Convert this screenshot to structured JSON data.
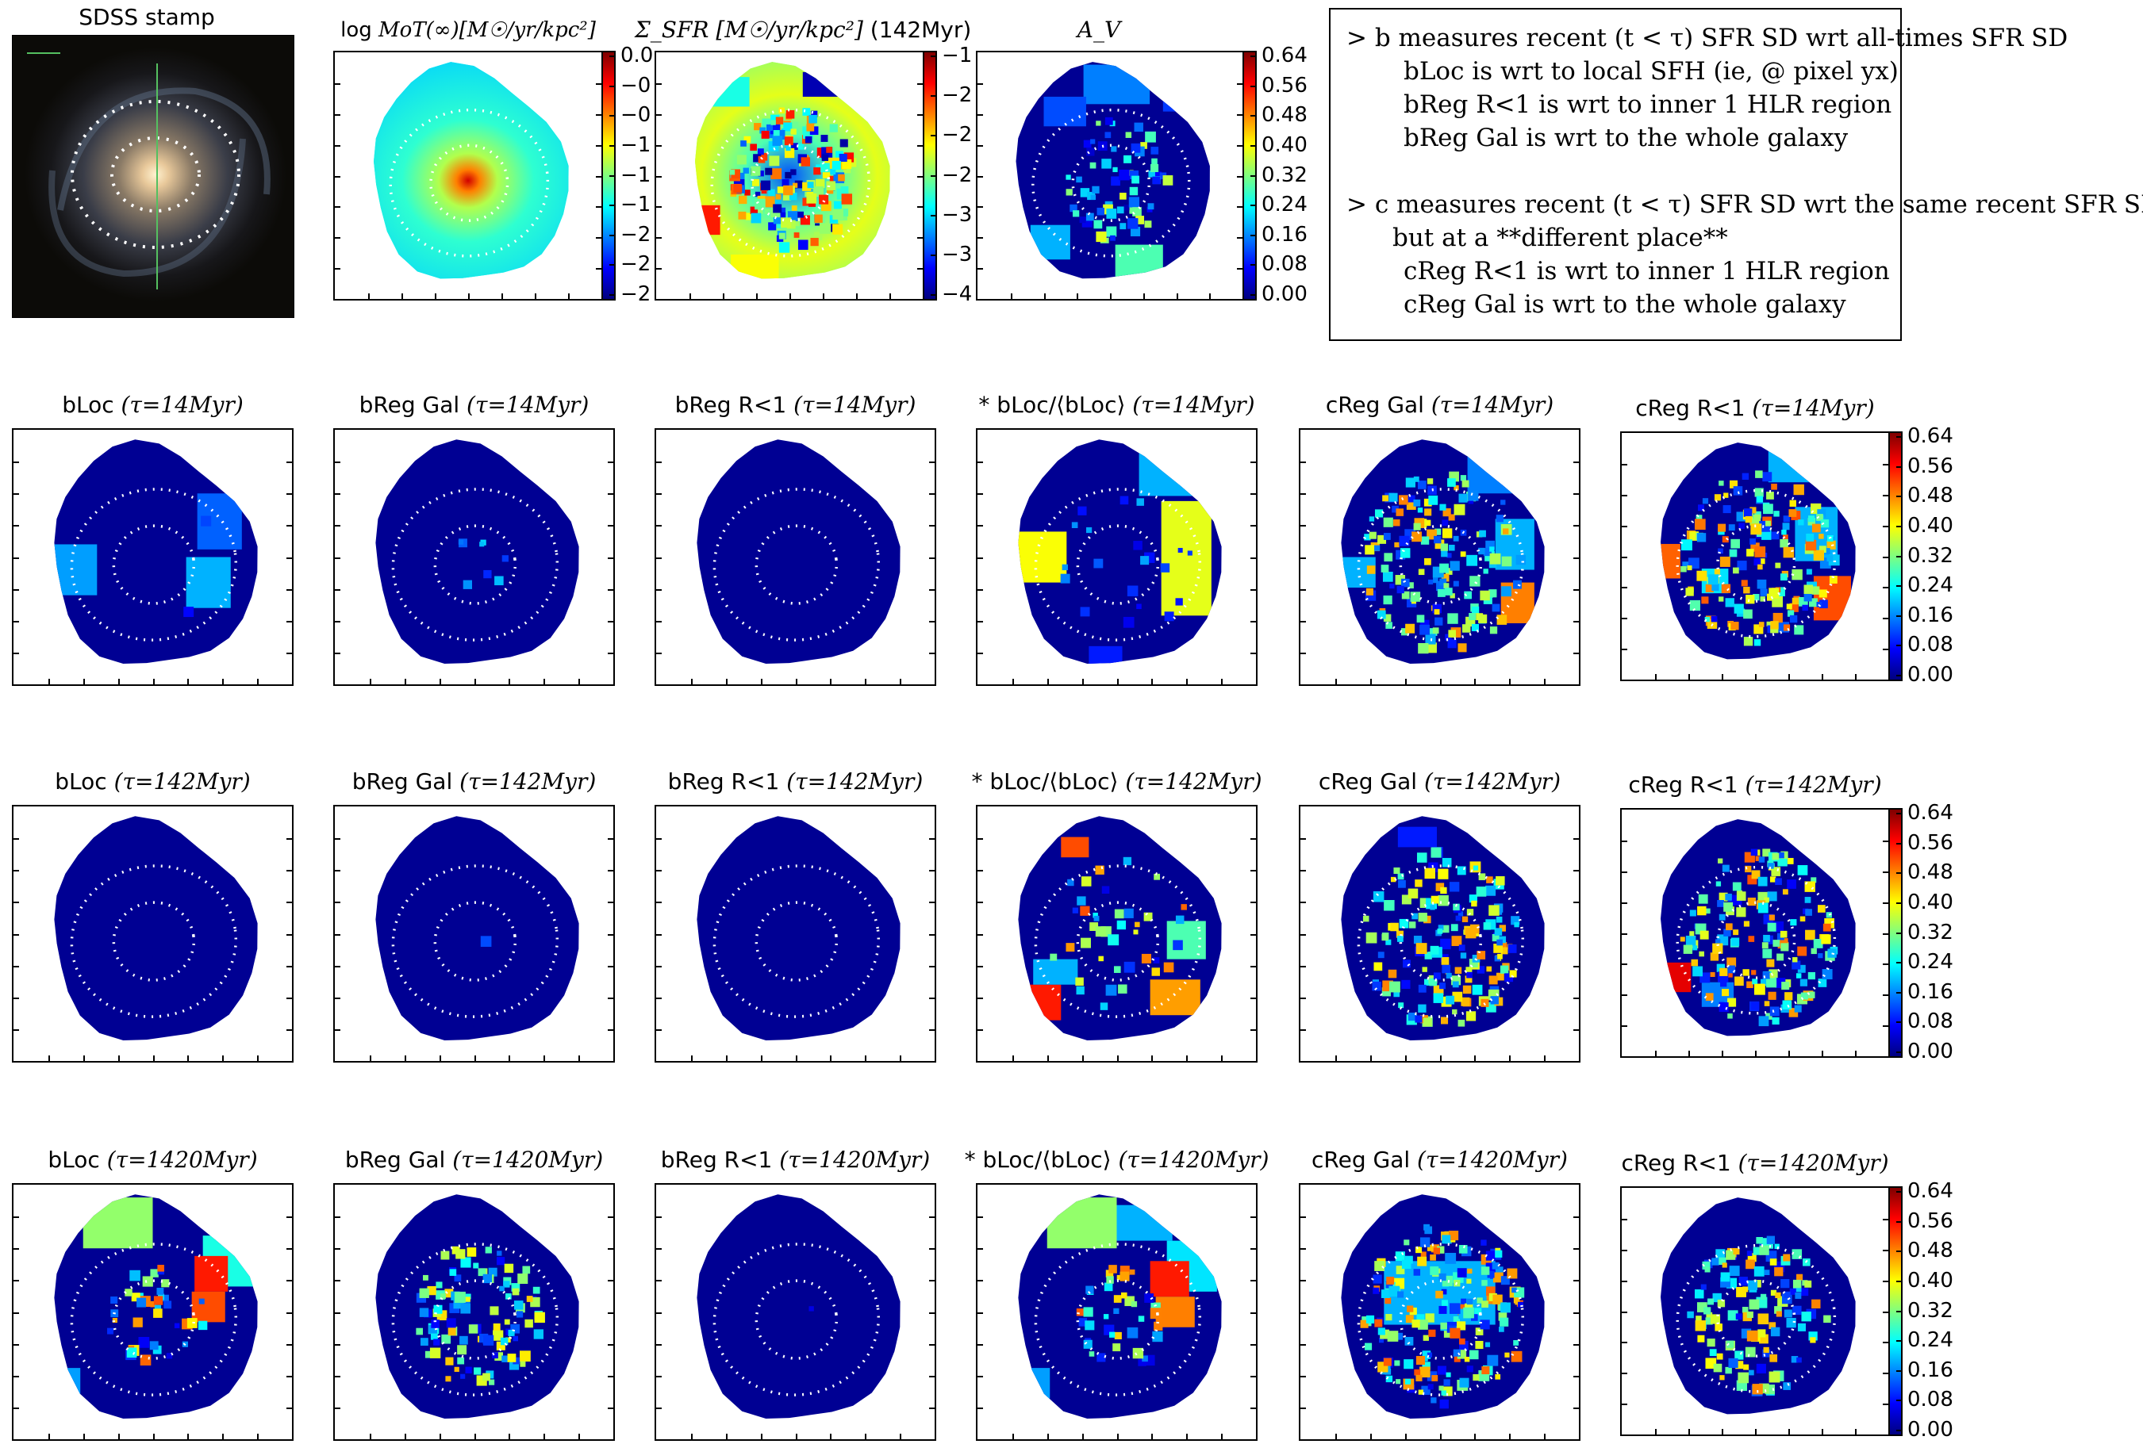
{
  "colorscale": [
    "#00007f",
    "#0000ff",
    "#007fff",
    "#00ffff",
    "#7fff7f",
    "#ffff00",
    "#ff7f00",
    "#ff0000",
    "#7f0000"
  ],
  "top_row": {
    "stamp_title": "SDSS stamp",
    "mot_title_prefix": "log ",
    "mot_title_math": "MoT(∞)[M☉/yr/kpc²]",
    "mot_ticks": [
      "0.0",
      "−0",
      "−0",
      "−1",
      "−1",
      "−1",
      "−2",
      "−2",
      "−2"
    ],
    "sfr_title_math": "Σ_SFR [M☉/yr/kpc²]",
    "sfr_title_suffix": " (142Myr)",
    "sfr_ticks": [
      "−1",
      "−2",
      "−2",
      "−2",
      "−3",
      "−3",
      "−4"
    ],
    "av_title": "A_V",
    "av_ticks": [
      "0.64",
      "0.56",
      "0.48",
      "0.40",
      "0.32",
      "0.24",
      "0.16",
      "0.08",
      "0.00"
    ]
  },
  "notes": [
    "> b measures recent (t < τ) SFR SD wrt all-times SFR SD",
    "bLoc is wrt to local SFH (ie, @ pixel yx)",
    "bReg R<1 is wrt to inner 1 HLR region",
    "bReg Gal is wrt to the whole galaxy",
    "> c measures recent (t < τ) SFR SD wrt the same recent SFR SD",
    "but at a **different place**",
    "cReg R<1 is wrt to inner 1 HLR region",
    "cReg Gal is wrt to the whole galaxy"
  ],
  "rows": [
    {
      "tau": "(τ=14Myr)",
      "titles": [
        "bLoc",
        "bReg Gal",
        "bReg R<1",
        "* bLoc/⟨bLoc⟩",
        "cReg Gal",
        "cReg R<1"
      ]
    },
    {
      "tau": "(τ=142Myr)",
      "titles": [
        "bLoc",
        "bReg Gal",
        "bReg R<1",
        "* bLoc/⟨bLoc⟩",
        "cReg Gal",
        "cReg R<1"
      ]
    },
    {
      "tau": "(τ=1420Myr)",
      "titles": [
        "bLoc",
        "bReg Gal",
        "bReg R<1",
        "* bLoc/⟨bLoc⟩",
        "cReg Gal",
        "cReg R<1"
      ]
    }
  ],
  "colorbar_ticks": [
    "0.64",
    "0.56",
    "0.48",
    "0.40",
    "0.32",
    "0.24",
    "0.16",
    "0.08",
    "0.00"
  ],
  "chart_data": {
    "type": "heatmap",
    "panels": [
      "SDSS stamp",
      "log MoT(∞)",
      "Σ_SFR (142Myr)",
      "A_V",
      "bLoc (τ=14Myr)",
      "bReg Gal (τ=14Myr)",
      "bReg R<1 (τ=14Myr)",
      "* bLoc/⟨bLoc⟩(τ=14Myr)",
      "cReg Gal (τ=14Myr)",
      "cReg R<1 (τ=14Myr)",
      "bLoc (τ=142Myr)",
      "bReg Gal (τ=142Myr)",
      "bReg R<1 (τ=142Myr)",
      "* bLoc/⟨bLoc⟩(τ=142Myr)",
      "cReg Gal (τ=142Myr)",
      "cReg R<1 (τ=142Myr)",
      "bLoc (τ=1420Myr)",
      "bReg Gal (τ=1420Myr)",
      "bReg R<1 (τ=1420Myr)",
      "* bLoc/⟨bLoc⟩(τ=1420Myr)",
      "cReg Gal (τ=1420Myr)",
      "cReg R<1 (τ=1420Myr)"
    ],
    "colorbar_range": [
      0.0,
      0.64
    ],
    "mot_range": [
      -2.5,
      0.1
    ],
    "sfr_range": [
      -4.6,
      -0.8
    ],
    "colormap": "jet"
  }
}
